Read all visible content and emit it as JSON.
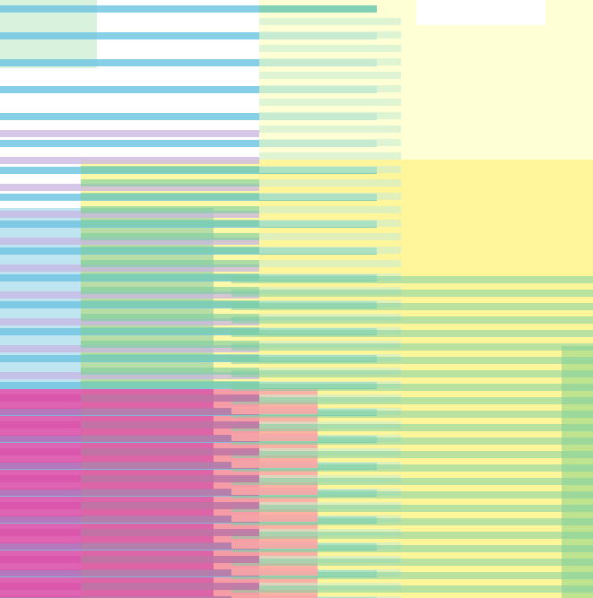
{
  "colors": {
    "blue": "#72c6e3",
    "lavender": "#c8b4e1",
    "green": "#7fd0a2",
    "pale_green": "#c9ecd0",
    "yellow": "#fff58a",
    "pale_yellow": "#ffffd6",
    "magenta": "#d94fa8",
    "salmon": "#f9a6a6",
    "lime": "#bfe38f",
    "white": "#ffffff"
  }
}
